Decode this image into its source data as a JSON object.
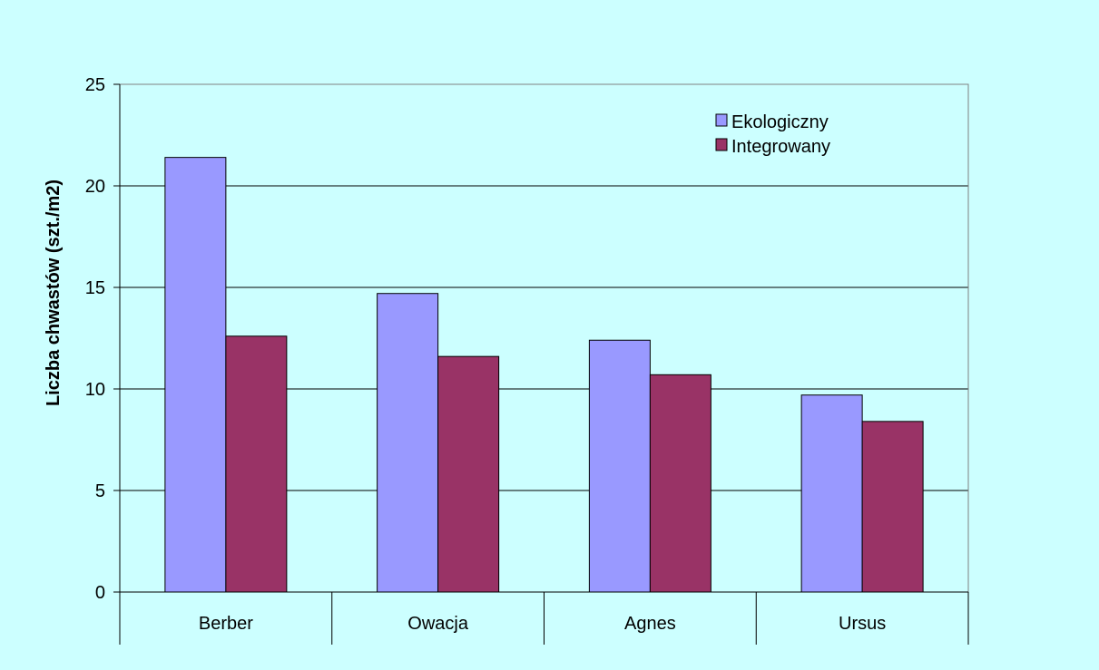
{
  "chart_data": {
    "type": "bar",
    "categories": [
      "Berber",
      "Owacja",
      "Agnes",
      "Ursus"
    ],
    "series": [
      {
        "name": "Ekologiczny",
        "values": [
          21.4,
          14.7,
          12.4,
          9.7
        ],
        "color": "#9999ff"
      },
      {
        "name": "Integrowany",
        "values": [
          12.6,
          11.6,
          10.7,
          8.4
        ],
        "color": "#993366"
      }
    ],
    "ylabel": "Liczba chwastów (szt./m2)",
    "xlabel": "",
    "ylim": [
      0,
      25
    ],
    "yticks": [
      "0",
      "5",
      "10",
      "15",
      "20",
      "25"
    ],
    "grid": true,
    "legend_position": "top-right",
    "plot_background": "#ccffff",
    "page_background": "#ccffff"
  }
}
